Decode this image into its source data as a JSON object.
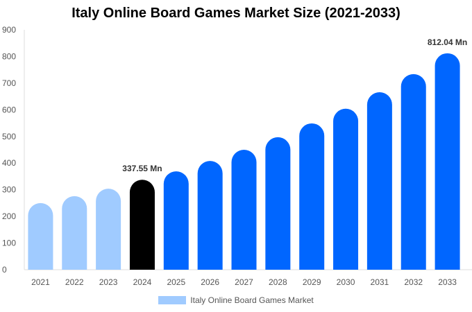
{
  "chart_data": {
    "type": "bar",
    "title": "Italy Online Board Games Market Size (2021-2033)",
    "categories": [
      "2021",
      "2022",
      "2023",
      "2024",
      "2025",
      "2026",
      "2027",
      "2028",
      "2029",
      "2030",
      "2031",
      "2032",
      "2033"
    ],
    "series": [
      {
        "name": "Italy Online Board Games Market",
        "values": [
          250,
          276,
          304,
          337.55,
          369,
          408,
          450,
          497,
          549,
          604,
          666,
          734,
          812.04
        ]
      }
    ],
    "ylim": [
      0,
      900
    ],
    "yticks": [
      0,
      100,
      200,
      300,
      400,
      500,
      600,
      700,
      800,
      900
    ],
    "data_labels": [
      {
        "category": "2024",
        "text": "337.55 Mn"
      },
      {
        "category": "2033",
        "text": "812.04 Mn"
      }
    ],
    "colors": {
      "historical": "#a0cbff",
      "base_year": "#000000",
      "forecast": "#0066ff"
    },
    "grid": false,
    "legend": "bottom"
  }
}
